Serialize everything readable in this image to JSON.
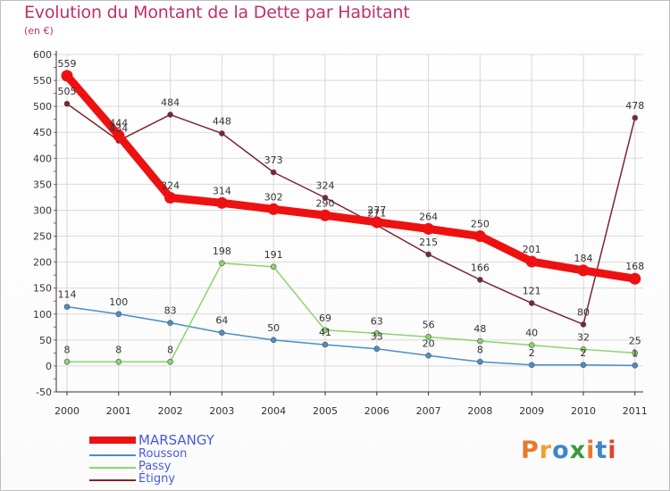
{
  "header": {
    "title": "Evolution du Montant de la Dette par Habitant",
    "unit": "(en €)"
  },
  "logo": {
    "text": "Proxiti",
    "letters": [
      "P",
      "r",
      "o",
      "x",
      "i",
      "t",
      "i"
    ]
  },
  "colors": {
    "title": "#c0306a",
    "legend_text": "#4a5ad8",
    "grid": "#d9d9d9",
    "axis": "#333333",
    "logo_letters": [
      "#e8792a",
      "#f0a030",
      "#3e86c8",
      "#3a9a3a",
      "#e8792a",
      "#3e86c8",
      "#e0452a"
    ]
  },
  "chart_data": {
    "type": "line",
    "title": "Evolution du Montant de la Dette par Habitant",
    "ylabel": "(en €)",
    "xlabel": "",
    "x": [
      "2000",
      "2001",
      "2002",
      "2003",
      "2004",
      "2005",
      "2006",
      "2007",
      "2008",
      "2009",
      "2010",
      "2011"
    ],
    "ylim": [
      -50,
      600
    ],
    "yticks": [
      -50,
      0,
      50,
      100,
      150,
      200,
      250,
      300,
      350,
      400,
      450,
      500,
      550,
      600
    ],
    "grid": true,
    "legend_position": "bottom-left",
    "series": [
      {
        "name": "MARSANGY",
        "color": "#ee1111",
        "values": [
          559,
          444,
          324,
          314,
          302,
          290,
          277,
          264,
          250,
          201,
          184,
          168
        ],
        "labels": [
          "559",
          "444",
          "324",
          "314",
          "302",
          "290",
          "277",
          "264",
          "250",
          "201",
          "184",
          "168"
        ]
      },
      {
        "name": "Rousson",
        "color": "#4a8ec6",
        "values": [
          114,
          100,
          83,
          64,
          50,
          41,
          33,
          20,
          8,
          2,
          2,
          1
        ],
        "labels": [
          "114",
          "100",
          "83",
          "64",
          "50",
          "41",
          "33",
          "20",
          "8",
          "2",
          "2",
          "1"
        ]
      },
      {
        "name": "Passy",
        "color": "#88d66a",
        "values": [
          8,
          8,
          8,
          198,
          191,
          69,
          63,
          56,
          48,
          40,
          32,
          25
        ],
        "labels": [
          "8",
          "8",
          "8",
          "198",
          "191",
          "69",
          "63",
          "56",
          "48",
          "40",
          "32",
          "25"
        ]
      },
      {
        "name": "Étigny",
        "color": "#7a2630",
        "values": [
          505,
          434,
          484,
          448,
          373,
          324,
          271,
          215,
          166,
          121,
          80,
          478
        ],
        "labels": [
          "505",
          "434",
          "484",
          "448",
          "373",
          "324",
          "271",
          "215",
          "166",
          "121",
          "80",
          "478"
        ]
      }
    ]
  }
}
